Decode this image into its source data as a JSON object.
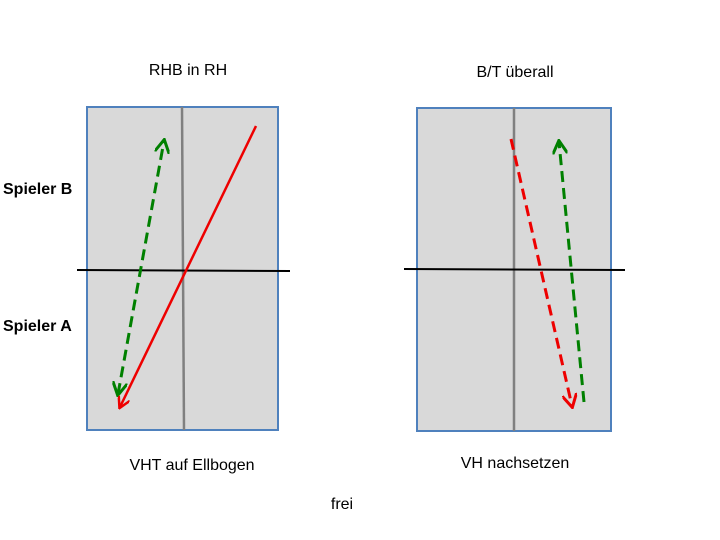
{
  "left_diagram": {
    "title": "RHB in RH",
    "caption": "VHT auf Ellbogen"
  },
  "right_diagram": {
    "title": "B/T überall",
    "caption": "VH nachsetzen"
  },
  "players": {
    "top": "Spieler B",
    "bottom": "Spieler A"
  },
  "footer": "frei",
  "colors": {
    "table_fill": "#d9d9d9",
    "table_border": "#4f81bd",
    "net": "#000000",
    "center_line": "#808080",
    "red_arrow": "#ee0000",
    "green_arrow": "#008000"
  }
}
